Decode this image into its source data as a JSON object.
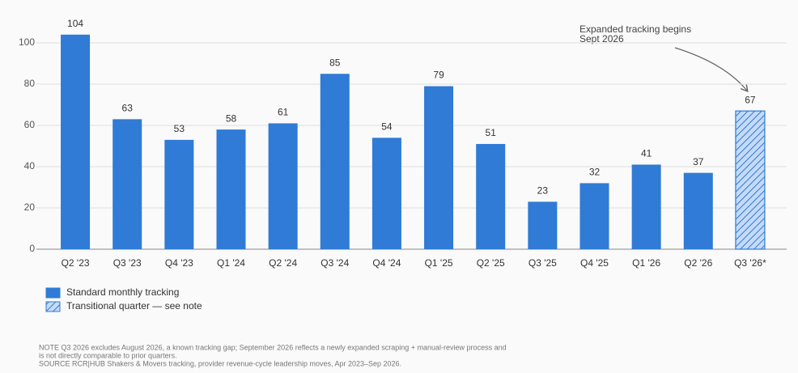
{
  "chart_data": {
    "type": "bar",
    "categories": [
      "Q2 '23",
      "Q3 '23",
      "Q4 '23",
      "Q1 '24",
      "Q2 '24",
      "Q3 '24",
      "Q4 '24",
      "Q1 '25",
      "Q2 '25",
      "Q3 '25",
      "Q4 '25",
      "Q1 '26",
      "Q2 '26",
      "Q3 '26*"
    ],
    "series": [
      {
        "name": "Standard monthly tracking",
        "color": "#2f7bd6",
        "hatch": false,
        "values": [
          104,
          63,
          53,
          58,
          61,
          85,
          54,
          79,
          51,
          23,
          32,
          41,
          37,
          null
        ]
      },
      {
        "name": "Transitional quarter — see note",
        "color": "#2f7bd6",
        "hatch": true,
        "values": [
          null,
          null,
          null,
          null,
          null,
          null,
          null,
          null,
          null,
          null,
          null,
          null,
          null,
          67
        ]
      }
    ],
    "ylim": [
      0,
      110
    ],
    "yticks": [
      0,
      20,
      40,
      60,
      80,
      100
    ],
    "grid": true,
    "annotation": [
      "Expanded tracking begins",
      "Sept 2026"
    ],
    "note": [
      "NOTE  Q3 2026 excludes August 2026, a known tracking gap; September 2026 reflects a newly expanded scraping + manual-review process and",
      "is not directly comparable to prior quarters."
    ],
    "source": "SOURCE  RCR|HUB Shakers & Movers tracking, provider revenue-cycle leadership moves, Apr 2023–Sep 2026."
  }
}
